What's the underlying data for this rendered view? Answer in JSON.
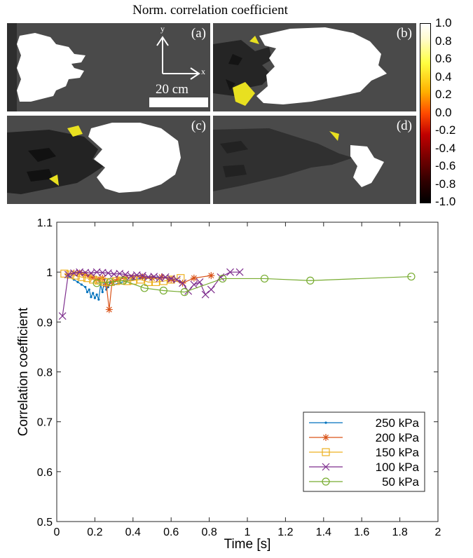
{
  "header": {
    "title": "Norm. correlation coefficient"
  },
  "panels": [
    {
      "label": "(a)"
    },
    {
      "label": "(b)"
    },
    {
      "label": "(c)"
    },
    {
      "label": "(d)"
    }
  ],
  "scale": {
    "text": "20 cm",
    "x_axis": "x",
    "y_axis": "y"
  },
  "colorbar": {
    "ticks": [
      "1.0",
      "0.8",
      "0.6",
      "0.4",
      "0.2",
      "0.0",
      "-0.2",
      "-0.4",
      "-0.6",
      "-0.8",
      "-1.0"
    ],
    "colors": [
      "#ffffff",
      "#ffff40",
      "#ffb000",
      "#ff4a00",
      "#c00000",
      "#300000",
      "#000000"
    ]
  },
  "chart_data": {
    "type": "line",
    "xlabel": "Time [s]",
    "ylabel": "Correlation coefficient",
    "xlim": [
      0,
      2
    ],
    "ylim": [
      0.5,
      1.1
    ],
    "xticks": [
      0,
      0.2,
      0.4,
      0.6,
      0.8,
      1,
      1.2,
      1.4,
      1.6,
      1.8,
      2
    ],
    "xtick_labels": [
      "0",
      "0.2",
      "0.4",
      "0.6",
      "0.8",
      "1",
      "1.2",
      "1.4",
      "1.6",
      "1.8",
      "2"
    ],
    "yticks": [
      0.5,
      0.6,
      0.7,
      0.8,
      0.9,
      1.0,
      1.1
    ],
    "ytick_labels": [
      "0.5",
      "0.6",
      "0.7",
      "0.8",
      "0.9",
      "1",
      "1.1"
    ],
    "legend_position": "bottom-right",
    "series": [
      {
        "name": "250 kPa",
        "color": "#0072BD",
        "marker": "dot",
        "x": [
          0.05,
          0.07,
          0.09,
          0.11,
          0.13,
          0.15,
          0.16,
          0.17,
          0.18,
          0.19,
          0.2,
          0.21,
          0.22,
          0.23,
          0.24,
          0.25,
          0.26,
          0.27,
          0.28,
          0.3,
          0.33,
          0.36,
          0.4,
          0.45,
          0.5,
          0.55
        ],
        "y": [
          0.995,
          0.99,
          0.985,
          0.98,
          0.975,
          0.97,
          0.96,
          0.965,
          0.95,
          0.958,
          0.948,
          0.955,
          0.945,
          0.975,
          0.96,
          0.985,
          0.965,
          0.97,
          0.98,
          0.975,
          0.978,
          0.982,
          0.985,
          0.988,
          0.99,
          0.99
        ]
      },
      {
        "name": "200 kPa",
        "color": "#D95319",
        "marker": "asterisk",
        "x": [
          0.06,
          0.09,
          0.12,
          0.15,
          0.18,
          0.21,
          0.24,
          0.26,
          0.275,
          0.29,
          0.32,
          0.36,
          0.4,
          0.45,
          0.5,
          0.55,
          0.6,
          0.66,
          0.72,
          0.81
        ],
        "y": [
          0.995,
          0.998,
          0.998,
          0.995,
          0.99,
          0.985,
          0.988,
          0.975,
          0.925,
          0.98,
          0.985,
          0.988,
          0.99,
          0.99,
          0.988,
          0.99,
          0.985,
          0.978,
          0.988,
          0.993
        ]
      },
      {
        "name": "150 kPa",
        "color": "#EDB120",
        "marker": "square",
        "x": [
          0.04,
          0.07,
          0.1,
          0.13,
          0.16,
          0.19,
          0.22,
          0.25,
          0.28,
          0.31,
          0.34,
          0.37,
          0.4,
          0.44,
          0.48,
          0.52,
          0.56,
          0.6,
          0.65
        ],
        "y": [
          0.997,
          0.995,
          0.993,
          0.99,
          0.988,
          0.985,
          0.983,
          0.98,
          0.98,
          0.982,
          0.983,
          0.982,
          0.983,
          0.985,
          0.98,
          0.98,
          0.982,
          0.985,
          0.988
        ]
      },
      {
        "name": "100 kPa",
        "color": "#7E2F8E",
        "marker": "x",
        "x": [
          0.03,
          0.06,
          0.09,
          0.12,
          0.15,
          0.18,
          0.21,
          0.24,
          0.27,
          0.3,
          0.33,
          0.36,
          0.39,
          0.42,
          0.45,
          0.48,
          0.51,
          0.54,
          0.57,
          0.6,
          0.63,
          0.66,
          0.69,
          0.72,
          0.75,
          0.78,
          0.81,
          0.86,
          0.91,
          0.96
        ],
        "y": [
          0.912,
          0.995,
          0.998,
          1.0,
          0.999,
          0.998,
          1.0,
          0.999,
          0.998,
          0.996,
          0.997,
          0.995,
          0.992,
          0.994,
          0.993,
          0.99,
          0.991,
          0.988,
          0.99,
          0.987,
          0.985,
          0.978,
          0.962,
          0.975,
          0.98,
          0.955,
          0.965,
          0.99,
          1.0,
          1.0
        ]
      },
      {
        "name": "50 kPa",
        "color": "#77AC30",
        "marker": "circle",
        "x": [
          0.21,
          0.28,
          0.35,
          0.46,
          0.56,
          0.67,
          0.87,
          1.09,
          1.33,
          1.86
        ],
        "y": [
          0.978,
          0.98,
          0.983,
          0.968,
          0.963,
          0.96,
          0.987,
          0.987,
          0.983,
          0.991
        ]
      }
    ]
  }
}
